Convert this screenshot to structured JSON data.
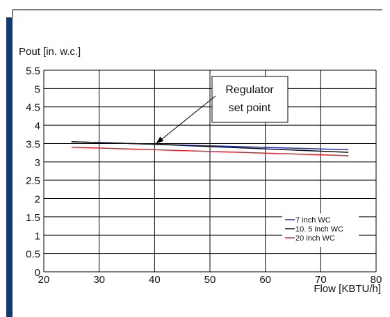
{
  "chart_data": {
    "type": "line",
    "ylabel": "Pout [in. w.c.]",
    "xlabel": "Flow [KBTU/h]",
    "xlim": [
      20,
      80
    ],
    "ylim": [
      0,
      5.5
    ],
    "x_ticks": [
      "20",
      "30",
      "40",
      "50",
      "60",
      "70",
      "80"
    ],
    "y_ticks": [
      "0",
      "0.5",
      "1",
      "1.5",
      "2",
      "2.5",
      "3",
      "3.5",
      "4",
      "4.5",
      "5",
      "5.5"
    ],
    "grid": true,
    "legend_position": "bottom-right",
    "series": [
      {
        "name": "7 inch WC",
        "color": "#1f2fb5",
        "x": [
          25,
          40,
          75
        ],
        "y": [
          3.55,
          3.48,
          3.33
        ]
      },
      {
        "name": "10. 5 inch WC",
        "color": "#111111",
        "x": [
          25,
          40,
          75
        ],
        "y": [
          3.55,
          3.48,
          3.26
        ]
      },
      {
        "name": "20 inch WC",
        "color": "#e8202a",
        "x": [
          25,
          40,
          75
        ],
        "y": [
          3.4,
          3.33,
          3.17
        ]
      }
    ],
    "annotation": {
      "lines": [
        "Regulator",
        "set point"
      ],
      "target": {
        "x": 40,
        "y": 3.48
      }
    }
  },
  "colors": {
    "frame_bar": "#0e3a7a",
    "frame_line": "#000000",
    "grid": "#000000"
  }
}
